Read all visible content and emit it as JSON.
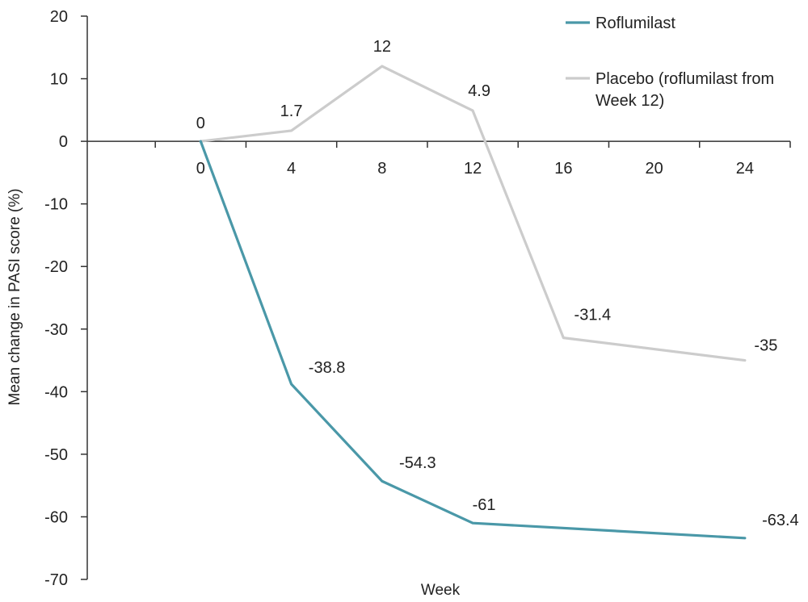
{
  "chart_data": {
    "type": "line",
    "title": "",
    "xlabel": "Week",
    "ylabel": "Mean change in PASI score (%)",
    "x": [
      0,
      4,
      8,
      12,
      16,
      20,
      24
    ],
    "x_ticks": [
      "0",
      "4",
      "8",
      "12",
      "16",
      "20",
      "24"
    ],
    "y_ticks": [
      "20",
      "10",
      "0",
      "-10",
      "-20",
      "-30",
      "-40",
      "-50",
      "-60",
      "-70"
    ],
    "ylim": [
      -70,
      20
    ],
    "xlim": [
      -5,
      26
    ],
    "grid": false,
    "legend_position": "top-right",
    "series": [
      {
        "name": "Roflumilast",
        "color": "#4a98a8",
        "points": [
          {
            "x": 0,
            "y": 0
          },
          {
            "x": 4,
            "y": -38.8
          },
          {
            "x": 8,
            "y": -54.3
          },
          {
            "x": 12,
            "y": -61
          },
          {
            "x": 24,
            "y": -63.4
          }
        ],
        "labels": [
          "",
          "-38.8",
          "-54.3",
          "-61",
          "-63.4"
        ]
      },
      {
        "name": "Placebo (roflumilast from Week 12)",
        "legend_lines": [
          "Placebo (roflumilast from",
          "Week 12)"
        ],
        "color": "#cccccc",
        "points": [
          {
            "x": 0,
            "y": 0
          },
          {
            "x": 4,
            "y": 1.7
          },
          {
            "x": 8,
            "y": 12
          },
          {
            "x": 12,
            "y": 4.9
          },
          {
            "x": 16,
            "y": -31.4
          },
          {
            "x": 24,
            "y": -35
          }
        ],
        "labels": [
          "0",
          "1.7",
          "12",
          "4.9",
          "-31.4",
          "-35"
        ]
      }
    ]
  }
}
